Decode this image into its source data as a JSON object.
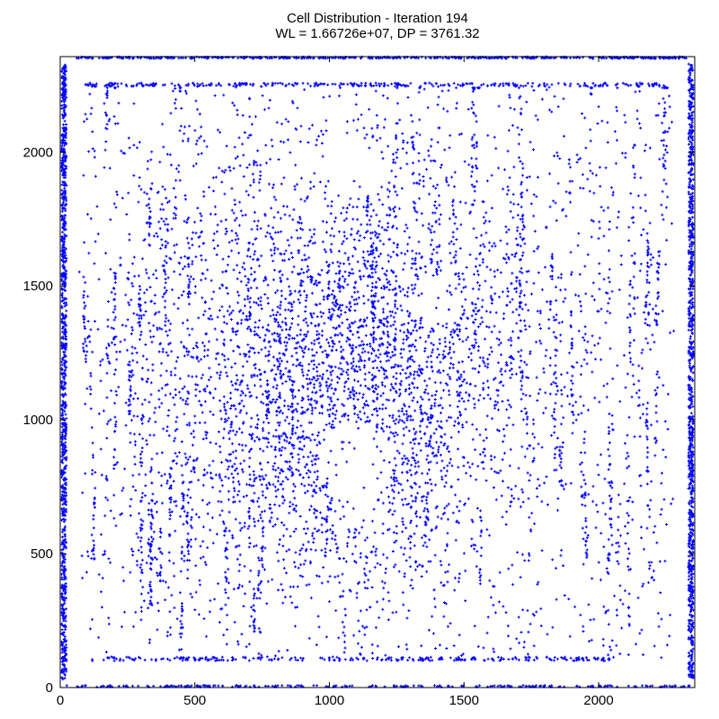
{
  "chart_data": {
    "type": "scatter",
    "title": "Cell Distribution - Iteration 194",
    "subtitle": "WL = 1.66726e+07, DP = 3761.32",
    "xlim": [
      0,
      2357
    ],
    "ylim": [
      0,
      2357
    ],
    "x_ticks": [
      0,
      500,
      1000,
      1500,
      2000
    ],
    "y_ticks": [
      0,
      500,
      1000,
      1500,
      2000
    ],
    "x_tick_labels": [
      "0",
      "500",
      "1000",
      "1500",
      "2000"
    ],
    "y_tick_labels": [
      "0",
      "500",
      "1000",
      "1500",
      "2000"
    ],
    "grid": false,
    "legend": "none",
    "marker_color": "#0000ff",
    "marker": "plus",
    "series": [
      {
        "approx_point_count": 9000,
        "x": [
          120,
          180,
          260,
          340,
          410,
          480,
          560,
          640,
          720,
          800,
          880,
          960,
          1040,
          1120,
          1200,
          1280,
          1360,
          1440,
          1520,
          1600,
          1680,
          1760,
          1840,
          1920,
          2000,
          2080,
          2160,
          2240
        ],
        "y": [
          100,
          260,
          430,
          610,
          790,
          980,
          1160,
          1340,
          1520,
          1700,
          1880,
          2060,
          2240,
          150,
          330,
          520,
          700,
          900,
          1090,
          1270,
          1450,
          1630,
          1810,
          1990,
          2170,
          380,
          1250,
          2200
        ]
      }
    ]
  }
}
